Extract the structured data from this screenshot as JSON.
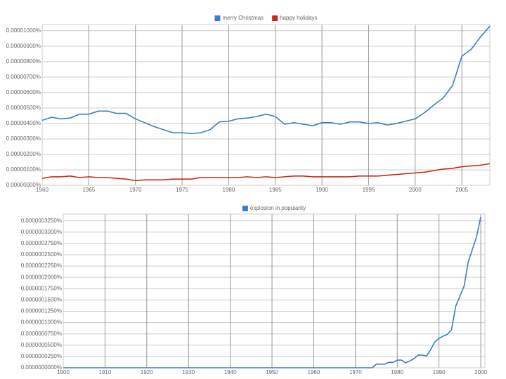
{
  "chart_data": [
    {
      "type": "line",
      "x": [
        1960,
        1961,
        1962,
        1963,
        1964,
        1965,
        1966,
        1967,
        1968,
        1969,
        1970,
        1971,
        1972,
        1973,
        1974,
        1975,
        1976,
        1977,
        1978,
        1979,
        1980,
        1981,
        1982,
        1983,
        1984,
        1985,
        1986,
        1987,
        1988,
        1989,
        1990,
        1991,
        1992,
        1993,
        1994,
        1995,
        1996,
        1997,
        1998,
        1999,
        2000,
        2001,
        2002,
        2003,
        2004,
        2005,
        2006,
        2007,
        2008
      ],
      "series": [
        {
          "name": "merry Christmas",
          "color": "#3d7cc9",
          "values": [
            4.2e-06,
            4.4e-06,
            4.3e-06,
            4.35e-06,
            4.6e-06,
            4.6e-06,
            4.8e-06,
            4.8e-06,
            4.65e-06,
            4.65e-06,
            4.3e-06,
            4.05e-06,
            3.8e-06,
            3.6e-06,
            3.4e-06,
            3.4e-06,
            3.35e-06,
            3.4e-06,
            3.6e-06,
            4.1e-06,
            4.15e-06,
            4.3e-06,
            4.35e-06,
            4.45e-06,
            4.6e-06,
            4.45e-06,
            3.95e-06,
            4.05e-06,
            3.95e-06,
            3.85e-06,
            4.05e-06,
            4.05e-06,
            3.95e-06,
            4.1e-06,
            4.1e-06,
            4e-06,
            4.05e-06,
            3.9e-06,
            4e-06,
            4.15e-06,
            4.3e-06,
            4.7e-06,
            5.2e-06,
            5.65e-06,
            6.45e-06,
            8.35e-06,
            8.8e-06,
            9.6e-06,
            1.03e-05
          ]
        },
        {
          "name": "happy holidays",
          "color": "#cc2a10",
          "values": [
            4.5e-07,
            5.5e-07,
            5.5e-07,
            6e-07,
            5e-07,
            5.5e-07,
            5e-07,
            5e-07,
            4.5e-07,
            4e-07,
            3e-07,
            3.5e-07,
            3.5e-07,
            3.5e-07,
            4e-07,
            4e-07,
            4e-07,
            5e-07,
            5e-07,
            5e-07,
            5e-07,
            5e-07,
            5.5e-07,
            5e-07,
            5.5e-07,
            5e-07,
            5.5e-07,
            6e-07,
            6e-07,
            5.5e-07,
            5.5e-07,
            5.5e-07,
            5.5e-07,
            5.5e-07,
            6e-07,
            6e-07,
            6e-07,
            6.5e-07,
            7e-07,
            7.5e-07,
            8e-07,
            8.5e-07,
            9.5e-07,
            1.05e-06,
            1.1e-06,
            1.2e-06,
            1.25e-06,
            1.3e-06,
            1.4e-06
          ]
        }
      ],
      "xlim": [
        1960,
        2008
      ],
      "xticks": [
        1960,
        1965,
        1970,
        1975,
        1980,
        1985,
        1990,
        1995,
        2000,
        2005
      ],
      "ylim": [
        0,
        1.04e-05
      ],
      "yticks": [
        {
          "value": 0,
          "label": "0.00000000%"
        },
        {
          "value": 1e-06,
          "label": "0.00000100%"
        },
        {
          "value": 2e-06,
          "label": "0.00000200%"
        },
        {
          "value": 3e-06,
          "label": "0.00000300%"
        },
        {
          "value": 4e-06,
          "label": "0.00000400%"
        },
        {
          "value": 5e-06,
          "label": "0.00000500%"
        },
        {
          "value": 6e-06,
          "label": "0.00000600%"
        },
        {
          "value": 7e-06,
          "label": "0.00000700%"
        },
        {
          "value": 8e-06,
          "label": "0.00000800%"
        },
        {
          "value": 9e-06,
          "label": "0.00000900%"
        },
        {
          "value": 1e-05,
          "label": "0.00001000%"
        }
      ],
      "grid": true
    },
    {
      "type": "line",
      "x": [
        1900,
        1974,
        1975,
        1976,
        1977,
        1978,
        1979,
        1980,
        1981,
        1982,
        1983,
        1984,
        1985,
        1986,
        1987,
        1988,
        1989,
        1990,
        1991,
        1992,
        1993,
        1994,
        1995,
        1996,
        1997,
        1998,
        1999,
        2000
      ],
      "series": [
        {
          "name": "explosion in popularity",
          "color": "#3d7cc9",
          "values": [
            0,
            0,
            8e-09,
            8e-09,
            8e-09,
            1.2e-08,
            1.2e-08,
            1.7e-08,
            1.7e-08,
            1.1e-08,
            1.5e-08,
            2e-08,
            2.8e-08,
            2.8e-08,
            2.6e-08,
            4e-08,
            5.7e-08,
            6.5e-08,
            7e-08,
            7.4e-08,
            8.4e-08,
            1.36e-07,
            1.58e-07,
            1.8e-07,
            2.34e-07,
            2.62e-07,
            2.9e-07,
            3.34e-07
          ]
        }
      ],
      "xlim": [
        1900,
        2001
      ],
      "xticks": [
        1900,
        1910,
        1920,
        1930,
        1940,
        1950,
        1960,
        1970,
        1980,
        1990,
        2000
      ],
      "ylim": [
        0,
        3.4e-07
      ],
      "yticks": [
        {
          "value": 0,
          "label": "0.0000000000%"
        },
        {
          "value": 2.5e-08,
          "label": "0.0000000250%"
        },
        {
          "value": 5e-08,
          "label": "0.0000000500%"
        },
        {
          "value": 7.5e-08,
          "label": "0.0000000750%"
        },
        {
          "value": 1e-07,
          "label": "0.0000001000%"
        },
        {
          "value": 1.25e-07,
          "label": "0.0000001250%"
        },
        {
          "value": 1.5e-07,
          "label": "0.0000001500%"
        },
        {
          "value": 1.75e-07,
          "label": "0.0000001750%"
        },
        {
          "value": 2e-07,
          "label": "0.0000002000%"
        },
        {
          "value": 2.25e-07,
          "label": "0.0000002250%"
        },
        {
          "value": 2.5e-07,
          "label": "0.0000002500%"
        },
        {
          "value": 2.75e-07,
          "label": "0.0000002750%"
        },
        {
          "value": 3e-07,
          "label": "0.0000003000%"
        },
        {
          "value": 3.25e-07,
          "label": "0.0000003250%"
        }
      ],
      "grid": true
    }
  ]
}
